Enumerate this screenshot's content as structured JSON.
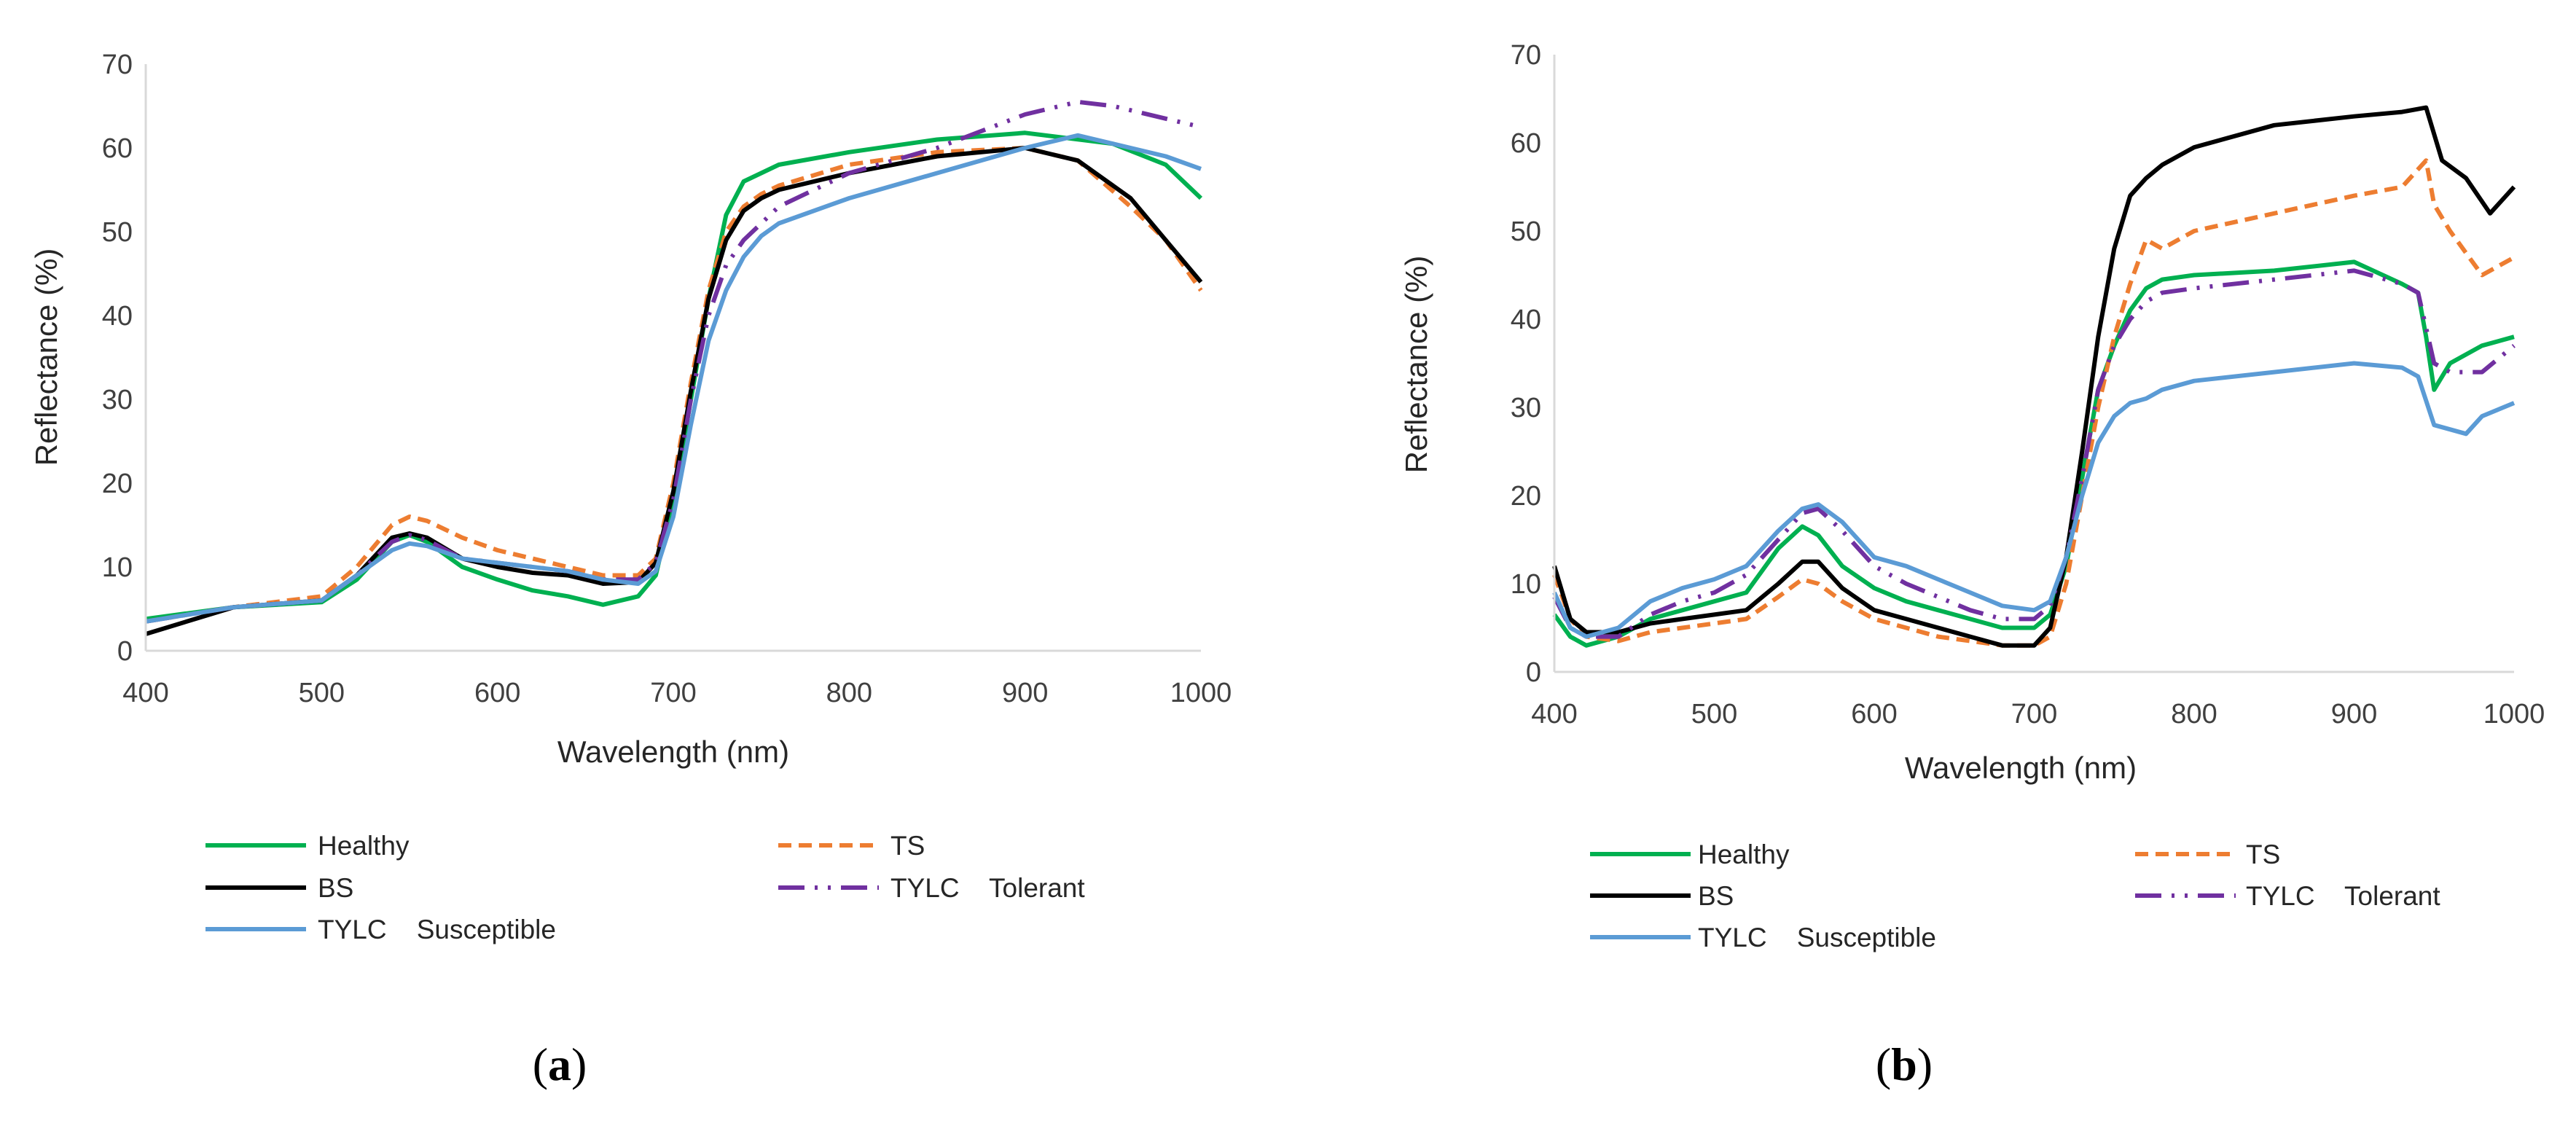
{
  "chart_data": [
    {
      "type": "line",
      "panel_label": "a",
      "xlabel": "Wavelength (nm)",
      "ylabel": "Reflectance (%)",
      "xlim": [
        400,
        1000
      ],
      "ylim": [
        0,
        70
      ],
      "x_ticks": [
        400,
        500,
        600,
        700,
        800,
        900,
        1000
      ],
      "y_ticks": [
        0,
        10,
        20,
        30,
        40,
        50,
        60,
        70
      ],
      "grid": false,
      "legend_position": "bottom",
      "series": [
        {
          "name": "Healthy",
          "color": "#00b050",
          "style": "solid",
          "x": [
            400,
            450,
            500,
            520,
            540,
            550,
            560,
            580,
            600,
            620,
            640,
            660,
            680,
            690,
            700,
            710,
            720,
            730,
            740,
            750,
            760,
            800,
            850,
            900,
            950,
            980,
            1000
          ],
          "y": [
            3.8,
            5.2,
            5.8,
            8.5,
            13,
            13.8,
            13,
            10,
            8.5,
            7.2,
            6.5,
            5.5,
            6.5,
            9,
            18,
            30,
            42,
            52,
            56,
            57,
            58,
            59.5,
            61,
            61.8,
            60.5,
            58,
            54
          ]
        },
        {
          "name": "TS",
          "color": "#ed7d31",
          "style": "dashed",
          "x": [
            400,
            450,
            500,
            520,
            540,
            550,
            560,
            580,
            600,
            620,
            640,
            660,
            680,
            690,
            700,
            710,
            720,
            730,
            740,
            750,
            760,
            800,
            850,
            900,
            930,
            960,
            980,
            1000
          ],
          "y": [
            3.5,
            5.2,
            6.5,
            10,
            15,
            16,
            15.5,
            13.5,
            12,
            11,
            10,
            9,
            9,
            11,
            20,
            32,
            43,
            50,
            53,
            54.5,
            55.5,
            58,
            59.5,
            60,
            58.5,
            53,
            49,
            43
          ]
        },
        {
          "name": "BS",
          "color": "#000000",
          "style": "solid",
          "x": [
            400,
            450,
            500,
            520,
            540,
            550,
            560,
            580,
            600,
            620,
            640,
            660,
            680,
            690,
            700,
            710,
            720,
            730,
            740,
            750,
            760,
            800,
            850,
            900,
            930,
            960,
            980,
            1000
          ],
          "y": [
            2,
            5.2,
            6,
            9,
            13.5,
            14,
            13.5,
            11,
            10,
            9.3,
            9,
            8,
            8.2,
            10.5,
            19,
            31,
            42,
            49,
            52.5,
            54,
            55,
            57,
            59,
            60,
            58.5,
            54,
            49,
            44
          ]
        },
        {
          "name": "TYLC    Tolerant",
          "color": "#7030a0",
          "style": "dashdotdot",
          "x": [
            400,
            450,
            500,
            520,
            540,
            550,
            560,
            580,
            600,
            620,
            640,
            660,
            680,
            690,
            700,
            710,
            720,
            730,
            740,
            750,
            760,
            800,
            850,
            900,
            930,
            950,
            980,
            1000
          ],
          "y": [
            3.5,
            5.2,
            6,
            9,
            13,
            13.8,
            13.2,
            11,
            10.5,
            10,
            9.5,
            8.5,
            8.5,
            10.5,
            18,
            30,
            40,
            46,
            49,
            51,
            53,
            57,
            60,
            64,
            65.5,
            65,
            63.5,
            62.5
          ]
        },
        {
          "name": "TYLC    Susceptible",
          "color": "#5b9bd5",
          "style": "solid",
          "x": [
            400,
            450,
            500,
            520,
            540,
            550,
            560,
            580,
            600,
            620,
            640,
            660,
            680,
            690,
            700,
            710,
            720,
            730,
            740,
            750,
            760,
            800,
            850,
            900,
            930,
            960,
            980,
            1000
          ],
          "y": [
            3.5,
            5.2,
            6,
            9,
            12,
            12.8,
            12.5,
            11,
            10.5,
            10,
            9.5,
            8.5,
            8,
            9.5,
            16,
            27,
            37,
            43,
            47,
            49.5,
            51,
            54,
            57,
            60,
            61.5,
            60,
            59,
            57.5
          ]
        }
      ],
      "legend": [
        "Healthy",
        "TS",
        "BS",
        "TYLC    Tolerant",
        "TYLC    Susceptible"
      ]
    },
    {
      "type": "line",
      "panel_label": "b",
      "xlabel": "Wavelength (nm)",
      "ylabel": "Reflectance (%)",
      "xlim": [
        400,
        1000
      ],
      "ylim": [
        0,
        70
      ],
      "x_ticks": [
        400,
        500,
        600,
        700,
        800,
        900,
        1000
      ],
      "y_ticks": [
        0,
        10,
        20,
        30,
        40,
        50,
        60,
        70
      ],
      "grid": false,
      "legend_position": "bottom",
      "series": [
        {
          "name": "Healthy",
          "color": "#00b050",
          "style": "solid",
          "x": [
            400,
            410,
            420,
            440,
            460,
            480,
            500,
            520,
            540,
            555,
            565,
            580,
            600,
            620,
            640,
            660,
            680,
            700,
            710,
            720,
            730,
            740,
            750,
            760,
            770,
            780,
            800,
            850,
            900,
            930,
            940,
            945,
            950,
            960,
            980,
            1000
          ],
          "y": [
            6.5,
            4,
            3,
            4,
            6,
            7,
            8,
            9,
            14,
            16.5,
            15.5,
            12,
            9.5,
            8,
            7,
            6,
            5,
            5,
            6.5,
            12,
            22,
            32,
            37,
            41,
            43.5,
            44.5,
            45,
            45.5,
            46.5,
            44,
            43,
            38,
            32,
            35,
            37,
            38
          ]
        },
        {
          "name": "TS",
          "color": "#ed7d31",
          "style": "dashed",
          "x": [
            400,
            410,
            420,
            440,
            460,
            480,
            500,
            520,
            540,
            555,
            565,
            580,
            600,
            620,
            640,
            660,
            680,
            700,
            710,
            720,
            730,
            740,
            750,
            760,
            770,
            780,
            800,
            850,
            900,
            930,
            945,
            950,
            960,
            980,
            1000
          ],
          "y": [
            11,
            6,
            4,
            3.5,
            4.5,
            5,
            5.5,
            6,
            8.5,
            10.5,
            10,
            8,
            6,
            5,
            4,
            3.5,
            3,
            3,
            4,
            10,
            20,
            30,
            38,
            44,
            49,
            48,
            50,
            52,
            54,
            55,
            58,
            53,
            50,
            45,
            47
          ]
        },
        {
          "name": "BS",
          "color": "#000000",
          "style": "solid",
          "x": [
            400,
            410,
            420,
            440,
            460,
            480,
            500,
            520,
            540,
            555,
            565,
            580,
            600,
            620,
            640,
            660,
            680,
            700,
            710,
            720,
            730,
            740,
            750,
            760,
            770,
            780,
            800,
            850,
            900,
            930,
            945,
            955,
            970,
            985,
            1000
          ],
          "y": [
            12,
            6,
            4.5,
            4.5,
            5.5,
            6,
            6.5,
            7,
            10,
            12.5,
            12.5,
            9.5,
            7,
            6,
            5,
            4,
            3,
            3,
            5,
            13,
            25,
            38,
            48,
            54,
            56,
            57.5,
            59.5,
            62,
            63,
            63.5,
            64,
            58,
            56,
            52,
            55
          ]
        },
        {
          "name": "TYLC    Tolerant",
          "color": "#7030a0",
          "style": "dashdotdot",
          "x": [
            400,
            410,
            420,
            440,
            460,
            480,
            500,
            520,
            540,
            555,
            565,
            580,
            600,
            620,
            640,
            660,
            680,
            700,
            710,
            720,
            730,
            740,
            750,
            760,
            770,
            780,
            800,
            850,
            900,
            930,
            940,
            950,
            960,
            980,
            1000
          ],
          "y": [
            8.5,
            5,
            4,
            4,
            6.5,
            8,
            9,
            11,
            15,
            18,
            18.5,
            16,
            12,
            10,
            8.5,
            7,
            6,
            6,
            7.5,
            13,
            22,
            32,
            37,
            40,
            42,
            43,
            43.5,
            44.5,
            45.5,
            44,
            43,
            35,
            34,
            34,
            37
          ]
        },
        {
          "name": "TYLC    Susceptible",
          "color": "#5b9bd5",
          "style": "solid",
          "x": [
            400,
            410,
            420,
            440,
            460,
            480,
            500,
            520,
            540,
            555,
            565,
            580,
            600,
            620,
            640,
            660,
            680,
            700,
            710,
            720,
            730,
            740,
            750,
            760,
            770,
            780,
            800,
            850,
            900,
            930,
            940,
            950,
            970,
            980,
            1000
          ],
          "y": [
            9,
            5,
            4,
            5,
            8,
            9.5,
            10.5,
            12,
            16,
            18.5,
            19,
            17,
            13,
            12,
            10.5,
            9,
            7.5,
            7,
            8,
            13,
            20,
            26,
            29,
            30.5,
            31,
            32,
            33,
            34,
            35,
            34.5,
            33.5,
            28,
            27,
            29,
            30.5
          ]
        }
      ],
      "legend": [
        "Healthy",
        "TS",
        "BS",
        "TYLC    Tolerant",
        "TYLC    Susceptible"
      ]
    }
  ]
}
